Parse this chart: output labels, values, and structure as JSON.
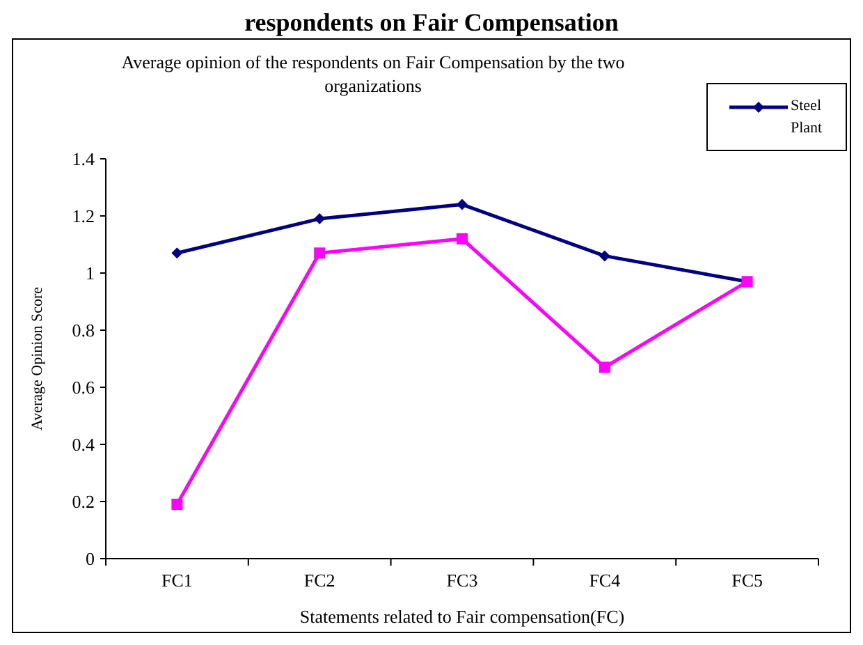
{
  "chart_data": {
    "type": "line",
    "title": "Average opinion of the respondents on Fair Compensation by the two organizations",
    "xlabel": "Statements related to Fair compensation(FC)",
    "ylabel": "Average Opinion Score",
    "annotations": [
      "respondents on Fair Compensation"
    ],
    "categories": [
      "FC1",
      "FC2",
      "FC3",
      "FC4",
      "FC5"
    ],
    "series": [
      {
        "name": "Steel Plant",
        "color": "#000080",
        "marker": "diamond",
        "values": [
          1.07,
          1.19,
          1.24,
          1.06,
          0.97
        ]
      },
      {
        "color": "#ff00ff",
        "marker": "square",
        "values": [
          0.19,
          1.07,
          1.12,
          0.67,
          0.97
        ]
      }
    ],
    "ylim": [
      0,
      1.4
    ],
    "yticks": [
      0,
      0.2,
      0.4,
      0.6,
      0.8,
      1,
      1.2,
      1.4
    ],
    "grid": false,
    "legend": "top right"
  }
}
